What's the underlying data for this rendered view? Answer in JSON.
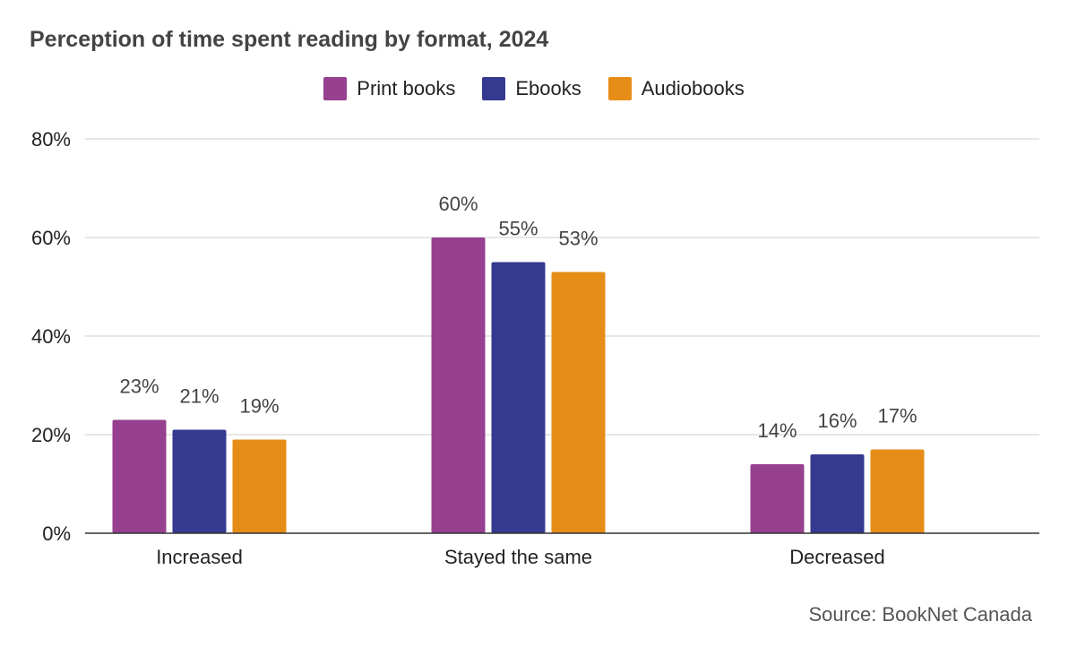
{
  "chart_data": {
    "type": "bar",
    "title": "Perception of time spent reading by format, 2024",
    "categories": [
      "Increased",
      "Stayed the same",
      "Decreased"
    ],
    "series": [
      {
        "name": "Print books",
        "values": [
          23,
          60,
          14
        ],
        "labels": [
          "23%",
          "60%",
          "14%"
        ],
        "color": "#96408f"
      },
      {
        "name": "Ebooks",
        "values": [
          21,
          55,
          16
        ],
        "labels": [
          "21%",
          "55%",
          "16%"
        ],
        "color": "#35398f"
      },
      {
        "name": "Audiobooks",
        "values": [
          19,
          53,
          17
        ],
        "labels": [
          "19%",
          "53%",
          "17%"
        ],
        "color": "#e68d18"
      }
    ],
    "ylim": [
      0,
      80
    ],
    "yticks": [
      0,
      20,
      40,
      60,
      80
    ],
    "ytick_labels": [
      "0%",
      "20%",
      "40%",
      "60%",
      "80%"
    ],
    "xlabel": "",
    "ylabel": "",
    "grid": true,
    "legend_position": "top-center",
    "gridline_color": "#cccccc",
    "baseline_color": "#333333"
  },
  "source": "Source: BookNet Canada"
}
